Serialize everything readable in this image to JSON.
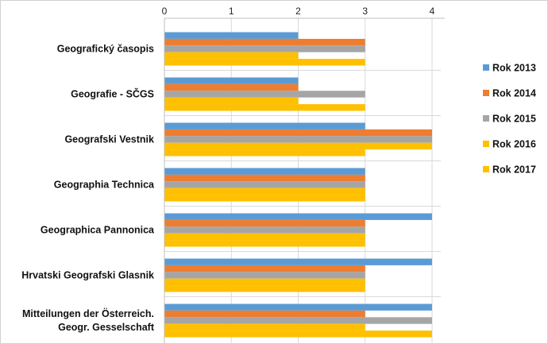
{
  "chart_data": {
    "type": "bar",
    "orientation": "horizontal",
    "title": "",
    "xlabel": "",
    "ylabel": "",
    "xlim": [
      0,
      4
    ],
    "ticks": [
      0,
      1,
      2,
      3,
      4
    ],
    "x_axis_position": "top",
    "grid": true,
    "legend_position": "right",
    "categories": [
      [
        "Geografický časopis"
      ],
      [
        "Geografie - SČGS"
      ],
      [
        "Geografski Vestnik"
      ],
      [
        "Geographia Technica"
      ],
      [
        "Geographica Pannonica"
      ],
      [
        "Hrvatski Geografski Glasnik"
      ],
      [
        "Mitteilungen der Österreich.",
        "Geogr. Gesselschaft"
      ]
    ],
    "series": [
      {
        "name": "Rok 2013",
        "color": "#5B9BD5",
        "values": [
          2,
          2,
          3,
          3,
          4,
          4,
          4
        ]
      },
      {
        "name": "Rok 2014",
        "color": "#ED7D31",
        "values": [
          3,
          2,
          4,
          3,
          3,
          3,
          3
        ]
      },
      {
        "name": "Rok 2015",
        "color": "#A5A5A5",
        "values": [
          3,
          3,
          4,
          3,
          3,
          3,
          4
        ]
      },
      {
        "name": "Rok 2016",
        "color": "#FFC000",
        "values": [
          2,
          2,
          4,
          3,
          3,
          3,
          3
        ]
      },
      {
        "name": "Rok 2017",
        "color": "#FFC000",
        "values": [
          3,
          3,
          3,
          3,
          3,
          3,
          4
        ]
      }
    ]
  }
}
